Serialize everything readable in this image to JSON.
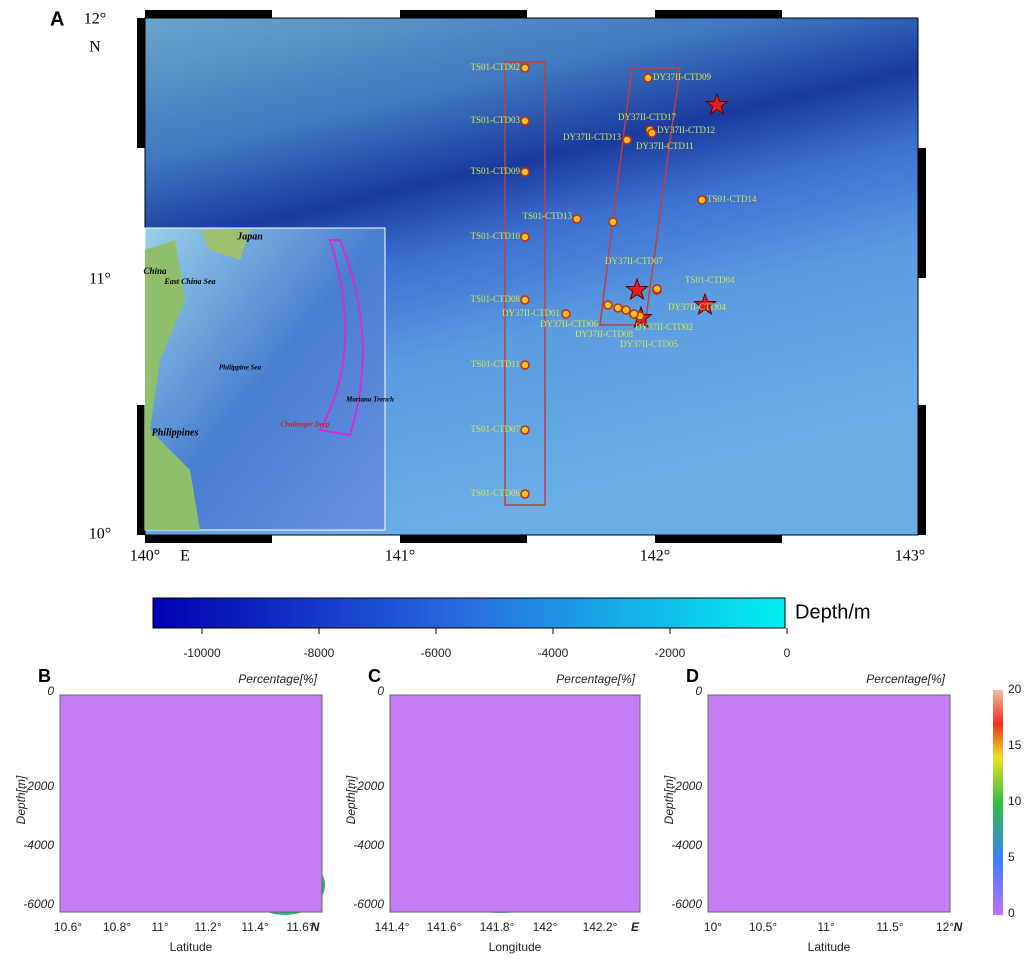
{
  "panel_a": {
    "label": "A",
    "lat_labels": [
      "12°",
      "N",
      "11°",
      "10°"
    ],
    "lon_labels": [
      "140°",
      "E",
      "141°",
      "142°",
      "143°"
    ],
    "inset_labels": [
      "Japan",
      "China",
      "East China Sea",
      "Philippine Sea",
      "Philippines",
      "Challenger Deep",
      "Mariana Trench"
    ],
    "stations": [
      "TS01-CTD02",
      "TS01-CTD03",
      "TS01-CTD09",
      "TS01-CTD10",
      "TS01-CTD08",
      "TS01-CTD11",
      "TS01-CTD07",
      "TS01-CTD06",
      "TS01-CTD13",
      "TS01-CTD14",
      "TS01-CTD04",
      "DY37II-CTD09",
      "DY37II-CTD17",
      "DY37II-CTD12",
      "DY37II-CTD13",
      "DY37II-CTD11",
      "DY37II-CTD04",
      "DY37II-CTD01",
      "DY37II-CTD06",
      "DY37II-CTD08",
      "DY37II-CTD02",
      "DY37II-CTD05",
      "DY37II-CTD07"
    ]
  },
  "colorbar": {
    "label": "Depth/m",
    "ticks": [
      "-10000",
      "-8000",
      "-6000",
      "-4000",
      "-2000",
      "0"
    ]
  },
  "panels": [
    {
      "label": "B",
      "title": "Percentage[%]",
      "y_label": "Depth[m]",
      "x_label": "Latitude",
      "y_ticks": [
        "0",
        "-2000",
        "-4000",
        "-6000"
      ],
      "x_ticks": [
        "10.6°",
        "10.8°",
        "11°",
        "11.2°",
        "11.4°",
        "11.6°"
      ],
      "x_unit": "N"
    },
    {
      "label": "C",
      "title": "Percentage[%]",
      "y_label": "Depth[m]",
      "x_label": "Longitude",
      "y_ticks": [
        "0",
        "-2000",
        "-4000",
        "-6000"
      ],
      "x_ticks": [
        "141.4°",
        "141.6°",
        "141.8°",
        "142°",
        "142.2°"
      ],
      "x_unit": "E"
    },
    {
      "label": "D",
      "title": "Percentage[%]",
      "y_label": "Depth[m]",
      "x_label": "Latitude",
      "y_ticks": [
        "0",
        "-2000",
        "-4000",
        "-6000"
      ],
      "x_ticks": [
        "10°",
        "10.5°",
        "11°",
        "11.5°",
        "12°"
      ],
      "x_unit": "N"
    }
  ],
  "percent_scale": {
    "ticks": [
      "20",
      "15",
      "10",
      "5",
      "0"
    ]
  }
}
